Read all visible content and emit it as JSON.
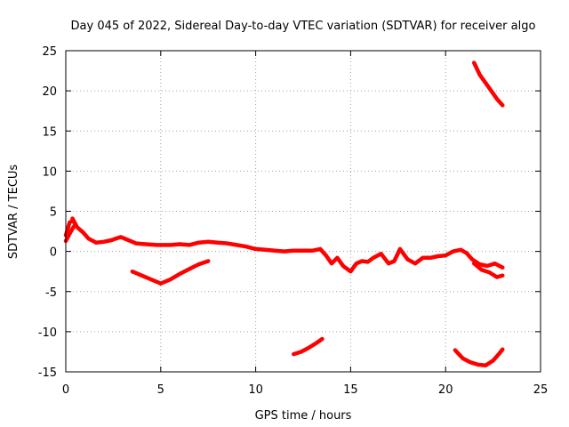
{
  "chart_data": {
    "type": "line",
    "title": "Day 045 of 2022, Sidereal Day-to-day VTEC variation (SDTVAR) for receiver algo",
    "xlabel": "GPS time / hours",
    "ylabel": "SDTVAR / TECUs",
    "xlim": [
      0,
      25
    ],
    "ylim": [
      -15,
      25
    ],
    "xticks": [
      0,
      5,
      10,
      15,
      20,
      25
    ],
    "yticks": [
      -15,
      -10,
      -5,
      0,
      5,
      10,
      15,
      20,
      25
    ],
    "grid": true,
    "color": "#ff0000",
    "series": [
      {
        "name": "main",
        "points": [
          [
            0,
            2.0
          ],
          [
            0.2,
            3.6
          ],
          [
            0.4,
            3.9
          ],
          [
            0.6,
            3.0
          ],
          [
            0.9,
            2.4
          ],
          [
            1.2,
            1.6
          ],
          [
            1.6,
            1.1
          ],
          [
            2.0,
            1.2
          ],
          [
            2.4,
            1.4
          ],
          [
            2.9,
            1.8
          ],
          [
            3.3,
            1.4
          ],
          [
            3.7,
            1.0
          ],
          [
            4.2,
            0.9
          ],
          [
            4.8,
            0.8
          ],
          [
            5.5,
            0.8
          ],
          [
            6.0,
            0.9
          ],
          [
            6.5,
            0.8
          ],
          [
            7.0,
            1.1
          ],
          [
            7.5,
            1.2
          ],
          [
            8.0,
            1.1
          ],
          [
            8.5,
            1.0
          ],
          [
            9.0,
            0.8
          ],
          [
            9.5,
            0.6
          ],
          [
            10.0,
            0.3
          ],
          [
            10.5,
            0.2
          ],
          [
            11.0,
            0.1
          ],
          [
            11.5,
            0.0
          ],
          [
            12.0,
            0.1
          ],
          [
            12.5,
            0.1
          ],
          [
            13.0,
            0.1
          ],
          [
            13.4,
            0.3
          ],
          [
            13.7,
            -0.5
          ],
          [
            14.0,
            -1.5
          ],
          [
            14.3,
            -0.8
          ],
          [
            14.6,
            -1.8
          ],
          [
            15.0,
            -2.5
          ],
          [
            15.3,
            -1.5
          ],
          [
            15.6,
            -1.2
          ],
          [
            15.9,
            -1.3
          ],
          [
            16.2,
            -0.8
          ],
          [
            16.6,
            -0.3
          ],
          [
            17.0,
            -1.5
          ],
          [
            17.3,
            -1.2
          ],
          [
            17.6,
            0.3
          ],
          [
            18.0,
            -1.0
          ],
          [
            18.4,
            -1.5
          ],
          [
            18.8,
            -0.8
          ],
          [
            19.2,
            -0.8
          ],
          [
            19.6,
            -0.6
          ],
          [
            20.0,
            -0.5
          ],
          [
            20.4,
            0.0
          ],
          [
            20.8,
            0.2
          ],
          [
            21.1,
            -0.2
          ],
          [
            21.4,
            -1.0
          ],
          [
            21.8,
            -1.6
          ],
          [
            22.2,
            -1.8
          ],
          [
            22.6,
            -1.5
          ],
          [
            23.0,
            -2.0
          ]
        ]
      },
      {
        "name": "branch-low",
        "points": [
          [
            21.5,
            -1.5
          ],
          [
            21.9,
            -2.3
          ],
          [
            22.3,
            -2.6
          ],
          [
            22.7,
            -3.2
          ],
          [
            23.0,
            -3.0
          ]
        ]
      },
      {
        "name": "early-bump",
        "points": [
          [
            0,
            1.3
          ],
          [
            0.2,
            2.2
          ],
          [
            0.4,
            3.0
          ],
          [
            0.5,
            3.3
          ],
          [
            0.35,
            4.1
          ]
        ]
      },
      {
        "name": "dip",
        "points": [
          [
            3.5,
            -2.5
          ],
          [
            4.0,
            -3.0
          ],
          [
            4.5,
            -3.5
          ],
          [
            5.0,
            -4.0
          ],
          [
            5.5,
            -3.5
          ],
          [
            6.0,
            -2.8
          ],
          [
            6.5,
            -2.2
          ],
          [
            7.0,
            -1.6
          ],
          [
            7.5,
            -1.2
          ]
        ]
      },
      {
        "name": "mid-neg",
        "points": [
          [
            12.0,
            -12.8
          ],
          [
            12.4,
            -12.5
          ],
          [
            12.8,
            -12.0
          ],
          [
            13.2,
            -11.4
          ],
          [
            13.5,
            -10.9
          ]
        ]
      },
      {
        "name": "late-neg",
        "points": [
          [
            20.5,
            -12.3
          ],
          [
            20.9,
            -13.3
          ],
          [
            21.3,
            -13.8
          ],
          [
            21.7,
            -14.1
          ],
          [
            22.1,
            -14.2
          ],
          [
            22.5,
            -13.6
          ],
          [
            22.8,
            -12.8
          ],
          [
            23.0,
            -12.2
          ]
        ]
      },
      {
        "name": "late-high",
        "points": [
          [
            21.5,
            23.5
          ],
          [
            21.8,
            22.0
          ],
          [
            22.1,
            21.0
          ],
          [
            22.4,
            20.0
          ],
          [
            22.7,
            19.0
          ],
          [
            23.0,
            18.2
          ]
        ]
      }
    ]
  }
}
